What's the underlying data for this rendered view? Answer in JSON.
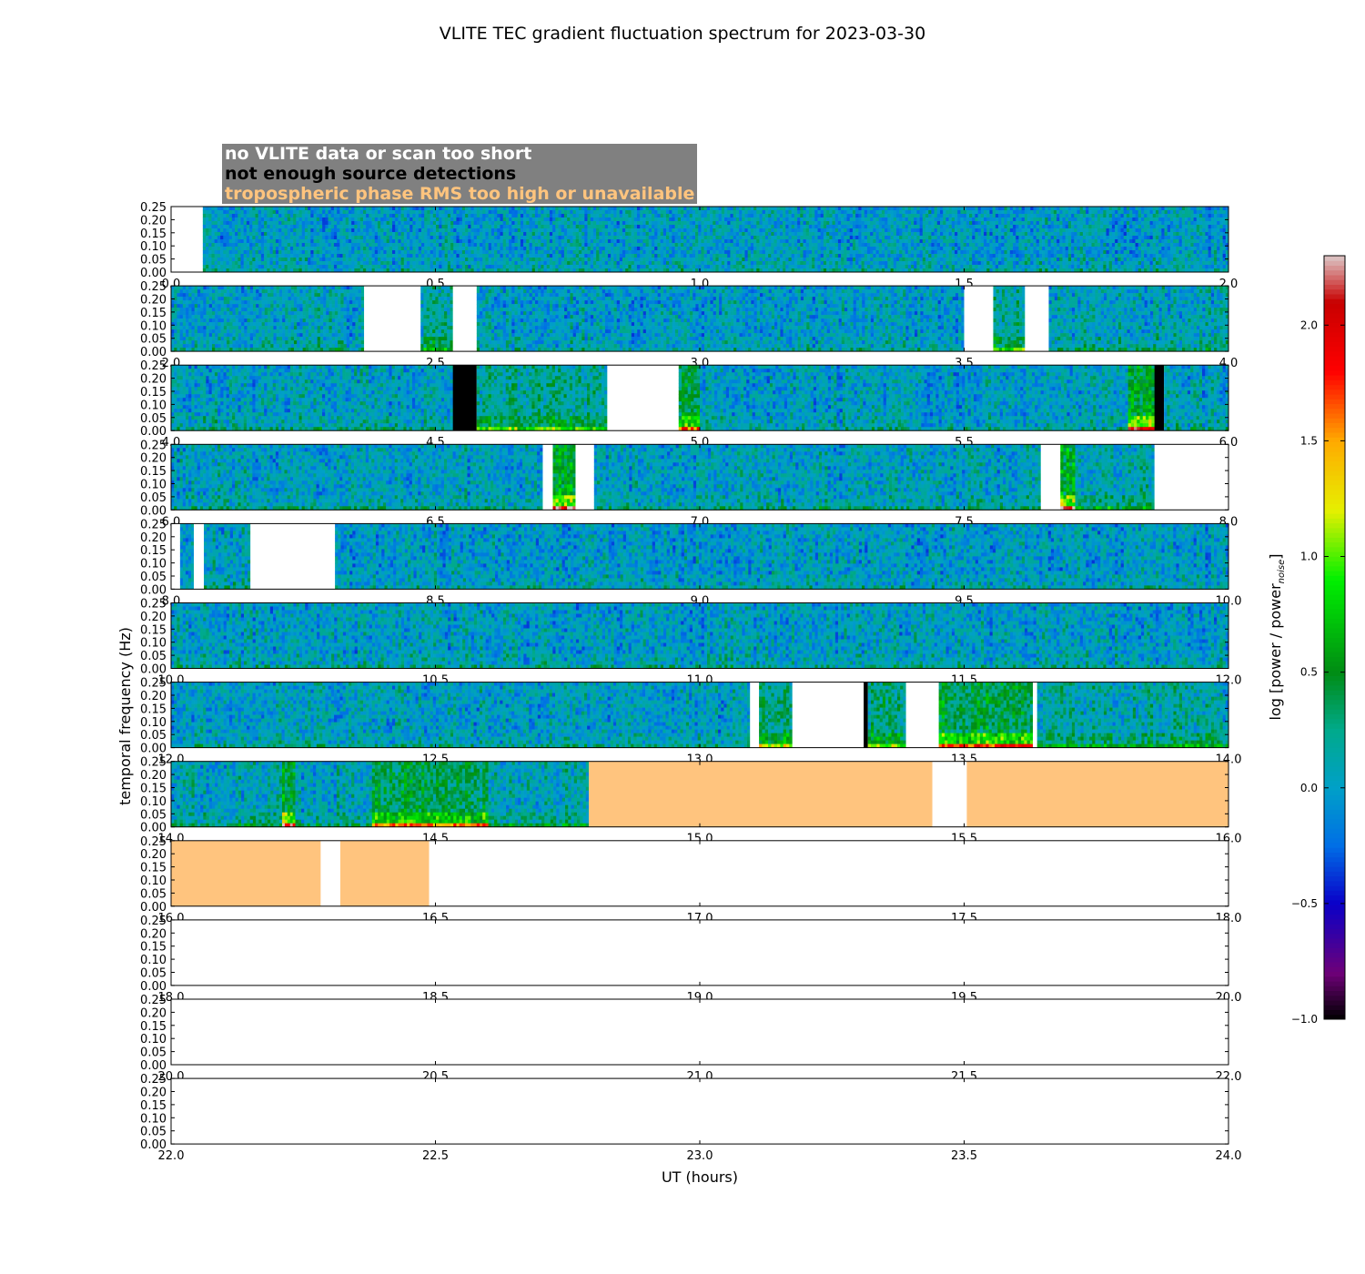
{
  "chart_data": {
    "type": "heatmap",
    "title": "VLITE TEC gradient fluctuation spectrum for 2023-03-30",
    "xlabel": "UT (hours)",
    "ylabel": "temporal frequency (Hz)",
    "colorbar_label": "log [power / power",
    "colorbar_label_sub": "noise",
    "colorbar_label_close": "]",
    "colorbar_ticks": [
      "2.0",
      "1.5",
      "1.0",
      "0.5",
      "0.0",
      "−0.5",
      "−1.0"
    ],
    "colorbar_range": [
      -1.0,
      2.3
    ],
    "y_ticks": [
      "0.25",
      "0.20",
      "0.15",
      "0.10",
      "0.05",
      "0.00"
    ],
    "ylim": [
      0,
      0.25
    ],
    "colors": {
      "no_data": "#ffffff",
      "too_few_detections": "#000000",
      "troposphere_bad": "#ffc47e",
      "legend_bg": "#808080"
    },
    "legend": [
      {
        "label": "no VLITE data or scan too short",
        "color": "#ffffff"
      },
      {
        "label": "not enough source detections",
        "color": "#000000"
      },
      {
        "label": "tropospheric phase RMS too high or unavailable",
        "color": "#ffc47e"
      }
    ],
    "panels": [
      {
        "xlim": [
          0,
          2
        ],
        "x_ticks": [
          "0.0",
          "0.5",
          "1.0",
          "1.5",
          "2.0"
        ],
        "segments": [
          {
            "start": 0.0,
            "end": 0.06,
            "kind": "nodata"
          },
          {
            "start": 0.06,
            "end": 2.0,
            "kind": "spectrum",
            "activity": 0.1
          }
        ]
      },
      {
        "xlim": [
          2,
          4
        ],
        "x_ticks": [
          "2.0",
          "2.5",
          "3.0",
          "3.5",
          "4.0"
        ],
        "segments": [
          {
            "start": 2.0,
            "end": 2.365,
            "kind": "spectrum",
            "activity": 0.15
          },
          {
            "start": 2.365,
            "end": 2.472,
            "kind": "nodata"
          },
          {
            "start": 2.472,
            "end": 2.533,
            "kind": "spectrum",
            "activity": 0.35
          },
          {
            "start": 2.533,
            "end": 2.578,
            "kind": "nodata"
          },
          {
            "start": 2.578,
            "end": 3.5,
            "kind": "spectrum",
            "activity": 0.1
          },
          {
            "start": 3.5,
            "end": 3.555,
            "kind": "nodata"
          },
          {
            "start": 3.555,
            "end": 3.615,
            "kind": "spectrum",
            "activity": 0.45
          },
          {
            "start": 3.615,
            "end": 3.66,
            "kind": "nodata"
          },
          {
            "start": 3.66,
            "end": 4.0,
            "kind": "spectrum",
            "activity": 0.2
          }
        ]
      },
      {
        "xlim": [
          4,
          6
        ],
        "x_ticks": [
          "4.0",
          "4.5",
          "5.0",
          "5.5",
          "6.0"
        ],
        "segments": [
          {
            "start": 4.0,
            "end": 4.533,
            "kind": "spectrum",
            "activity": 0.15
          },
          {
            "start": 4.533,
            "end": 4.578,
            "kind": "blocked"
          },
          {
            "start": 4.578,
            "end": 4.825,
            "kind": "spectrum",
            "activity": 0.45
          },
          {
            "start": 4.825,
            "end": 4.96,
            "kind": "nodata"
          },
          {
            "start": 4.96,
            "end": 5.0,
            "kind": "spectrum",
            "activity": 0.8
          },
          {
            "start": 5.0,
            "end": 5.81,
            "kind": "spectrum",
            "activity": 0.1
          },
          {
            "start": 5.81,
            "end": 5.86,
            "kind": "spectrum",
            "activity": 1.0
          },
          {
            "start": 5.86,
            "end": 5.878,
            "kind": "blocked"
          },
          {
            "start": 5.878,
            "end": 6.0,
            "kind": "spectrum",
            "activity": 0.15
          }
        ]
      },
      {
        "xlim": [
          6,
          8
        ],
        "x_ticks": [
          "6.0",
          "6.5",
          "7.0",
          "7.5",
          "8.0"
        ],
        "segments": [
          {
            "start": 6.0,
            "end": 6.703,
            "kind": "spectrum",
            "activity": 0.15
          },
          {
            "start": 6.703,
            "end": 6.722,
            "kind": "nodata"
          },
          {
            "start": 6.722,
            "end": 6.765,
            "kind": "spectrum",
            "activity": 1.0
          },
          {
            "start": 6.765,
            "end": 6.8,
            "kind": "nodata"
          },
          {
            "start": 6.8,
            "end": 7.645,
            "kind": "spectrum",
            "activity": 0.15
          },
          {
            "start": 7.645,
            "end": 7.682,
            "kind": "nodata"
          },
          {
            "start": 7.682,
            "end": 7.71,
            "kind": "spectrum",
            "activity": 1.0
          },
          {
            "start": 7.71,
            "end": 7.86,
            "kind": "spectrum",
            "activity": 0.3
          },
          {
            "start": 7.86,
            "end": 8.0,
            "kind": "nodata"
          }
        ]
      },
      {
        "xlim": [
          8,
          10
        ],
        "x_ticks": [
          "8.0",
          "8.5",
          "9.0",
          "9.5",
          "10.0"
        ],
        "segments": [
          {
            "start": 8.0,
            "end": 8.017,
            "kind": "nodata"
          },
          {
            "start": 8.017,
            "end": 8.043,
            "kind": "spectrum",
            "activity": 0.1
          },
          {
            "start": 8.043,
            "end": 8.062,
            "kind": "nodata"
          },
          {
            "start": 8.062,
            "end": 8.15,
            "kind": "spectrum",
            "activity": 0.15
          },
          {
            "start": 8.15,
            "end": 8.31,
            "kind": "nodata"
          },
          {
            "start": 8.31,
            "end": 10.0,
            "kind": "spectrum",
            "activity": 0.1
          }
        ]
      },
      {
        "xlim": [
          10,
          12
        ],
        "x_ticks": [
          "10.0",
          "10.5",
          "11.0",
          "11.5",
          "12.0"
        ],
        "segments": [
          {
            "start": 10.0,
            "end": 12.0,
            "kind": "spectrum",
            "activity": 0.12
          }
        ]
      },
      {
        "xlim": [
          12,
          14
        ],
        "x_ticks": [
          "12.0",
          "12.5",
          "13.0",
          "13.5",
          "14.0"
        ],
        "segments": [
          {
            "start": 12.0,
            "end": 13.095,
            "kind": "spectrum",
            "activity": 0.12
          },
          {
            "start": 13.095,
            "end": 13.112,
            "kind": "nodata"
          },
          {
            "start": 13.112,
            "end": 13.175,
            "kind": "spectrum",
            "activity": 0.6
          },
          {
            "start": 13.175,
            "end": 13.31,
            "kind": "nodata"
          },
          {
            "start": 13.31,
            "end": 13.318,
            "kind": "blocked"
          },
          {
            "start": 13.318,
            "end": 13.39,
            "kind": "spectrum",
            "activity": 0.5
          },
          {
            "start": 13.39,
            "end": 13.452,
            "kind": "nodata"
          },
          {
            "start": 13.452,
            "end": 13.63,
            "kind": "spectrum",
            "activity": 0.85
          },
          {
            "start": 13.63,
            "end": 13.638,
            "kind": "nodata"
          },
          {
            "start": 13.638,
            "end": 14.0,
            "kind": "spectrum",
            "activity": 0.3
          }
        ]
      },
      {
        "xlim": [
          14,
          16
        ],
        "x_ticks": [
          "14.0",
          "14.5",
          "15.0",
          "15.5",
          "16.0"
        ],
        "segments": [
          {
            "start": 14.0,
            "end": 14.21,
            "kind": "spectrum",
            "activity": 0.2
          },
          {
            "start": 14.21,
            "end": 14.235,
            "kind": "spectrum",
            "activity": 1.0
          },
          {
            "start": 14.235,
            "end": 14.38,
            "kind": "spectrum",
            "activity": 0.2
          },
          {
            "start": 14.38,
            "end": 14.6,
            "kind": "spectrum",
            "activity": 0.75
          },
          {
            "start": 14.6,
            "end": 14.79,
            "kind": "spectrum",
            "activity": 0.25
          },
          {
            "start": 14.79,
            "end": 15.44,
            "kind": "troposphere"
          },
          {
            "start": 15.44,
            "end": 15.505,
            "kind": "nodata"
          },
          {
            "start": 15.505,
            "end": 16.0,
            "kind": "troposphere"
          }
        ]
      },
      {
        "xlim": [
          16,
          18
        ],
        "x_ticks": [
          "16.0",
          "16.5",
          "17.0",
          "17.5",
          "18.0"
        ],
        "segments": [
          {
            "start": 16.0,
            "end": 16.283,
            "kind": "troposphere"
          },
          {
            "start": 16.283,
            "end": 16.32,
            "kind": "nodata"
          },
          {
            "start": 16.32,
            "end": 16.488,
            "kind": "troposphere"
          },
          {
            "start": 16.488,
            "end": 18.0,
            "kind": "nodata"
          }
        ]
      },
      {
        "xlim": [
          18,
          20
        ],
        "x_ticks": [
          "18.0",
          "18.5",
          "19.0",
          "19.5",
          "20.0"
        ],
        "segments": [
          {
            "start": 18.0,
            "end": 20.0,
            "kind": "nodata"
          }
        ]
      },
      {
        "xlim": [
          20,
          22
        ],
        "x_ticks": [
          "20.0",
          "20.5",
          "21.0",
          "21.5",
          "22.0"
        ],
        "segments": [
          {
            "start": 20.0,
            "end": 22.0,
            "kind": "nodata"
          }
        ]
      },
      {
        "xlim": [
          22,
          24
        ],
        "x_ticks": [
          "22.0",
          "22.5",
          "23.0",
          "23.5",
          "24.0"
        ],
        "segments": [
          {
            "start": 22.0,
            "end": 24.0,
            "kind": "nodata"
          }
        ]
      }
    ]
  }
}
